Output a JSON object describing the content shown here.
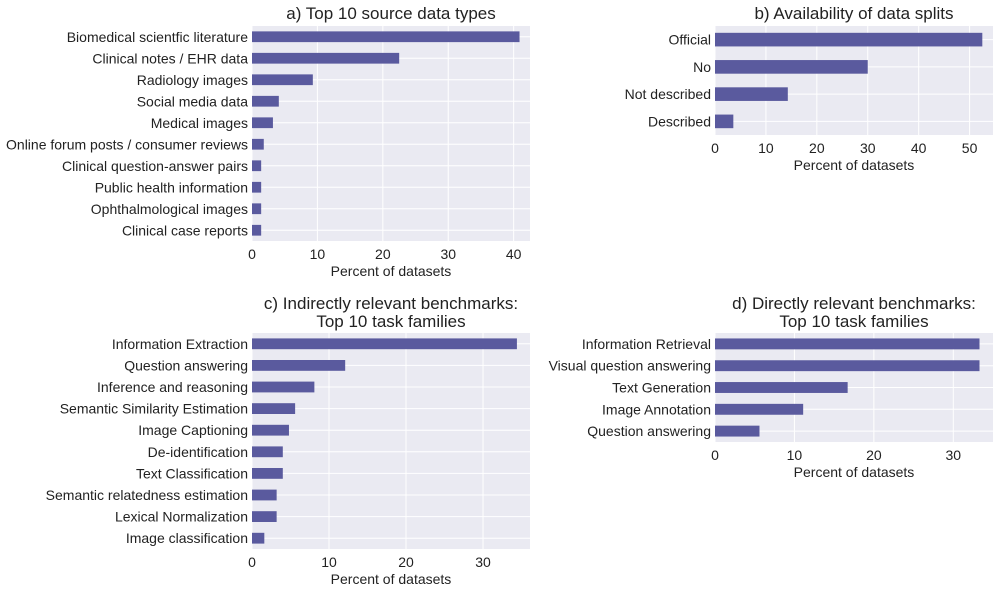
{
  "chart_data": [
    {
      "type": "bar",
      "orientation": "horizontal",
      "title": [
        "a) Top 10 source data types"
      ],
      "xlabel": "Percent of datasets",
      "ylabel": "",
      "xlim": [
        0,
        42.5
      ],
      "xticks": [
        "0",
        "10",
        "20",
        "30",
        "40"
      ],
      "xtick_values": [
        0,
        10,
        20,
        30,
        40
      ],
      "categories": [
        "Biomedical scientfic literature",
        "Clinical notes / EHR data",
        "Radiology images",
        "Social media data",
        "Medical images",
        "Online forum posts / consumer reviews",
        "Clinical question-answer pairs",
        "Public health information",
        "Ophthalmological images",
        "Clinical case reports"
      ],
      "values": [
        40.9,
        22.5,
        9.3,
        4.1,
        3.2,
        1.8,
        1.4,
        1.4,
        1.4,
        1.4
      ],
      "bar_color": "#5a5a9e",
      "grid": true
    },
    {
      "type": "bar",
      "orientation": "horizontal",
      "title": [
        "b) Availability of data splits"
      ],
      "xlabel": "Percent of datasets",
      "ylabel": "",
      "xlim": [
        0,
        54.6
      ],
      "xticks": [
        "0",
        "10",
        "20",
        "30",
        "40",
        "50"
      ],
      "xtick_values": [
        0,
        10,
        20,
        30,
        40,
        50
      ],
      "categories": [
        "Official",
        "No",
        "Not described",
        "Described"
      ],
      "values": [
        52.5,
        30.0,
        14.3,
        3.6
      ],
      "bar_color": "#5a5a9e",
      "grid": true
    },
    {
      "type": "bar",
      "orientation": "horizontal",
      "title": [
        "c) Indirectly relevant benchmarks:",
        "Top 10 task families"
      ],
      "xlabel": "Percent of datasets",
      "ylabel": "",
      "xlim": [
        0,
        36.1
      ],
      "xticks": [
        "0",
        "10",
        "20",
        "30"
      ],
      "xtick_values": [
        0,
        10,
        20,
        30
      ],
      "categories": [
        "Information Extraction",
        "Question answering",
        "Inference and reasoning",
        "Semantic Similarity Estimation",
        "Image Captioning",
        "De-identification",
        "Text Classification",
        "Semantic relatedness estimation",
        "Lexical Normalization",
        "Image classification"
      ],
      "values": [
        34.4,
        12.1,
        8.1,
        5.6,
        4.8,
        4.0,
        4.0,
        3.2,
        3.2,
        1.6
      ],
      "bar_color": "#5a5a9e",
      "grid": true
    },
    {
      "type": "bar",
      "orientation": "horizontal",
      "title": [
        "d) Directly relevant benchmarks:",
        "Top 10 task families"
      ],
      "xlabel": "Percent of datasets",
      "ylabel": "",
      "xlim": [
        0,
        35.0
      ],
      "xticks": [
        "0",
        "10",
        "20",
        "30"
      ],
      "xtick_values": [
        0,
        10,
        20,
        30
      ],
      "categories": [
        "Information Retrieval",
        "Visual question answering",
        "Text Generation",
        "Image Annotation",
        "Question answering"
      ],
      "values": [
        33.3,
        33.3,
        16.7,
        11.1,
        5.6
      ],
      "bar_color": "#5a5a9e",
      "grid": true
    }
  ]
}
